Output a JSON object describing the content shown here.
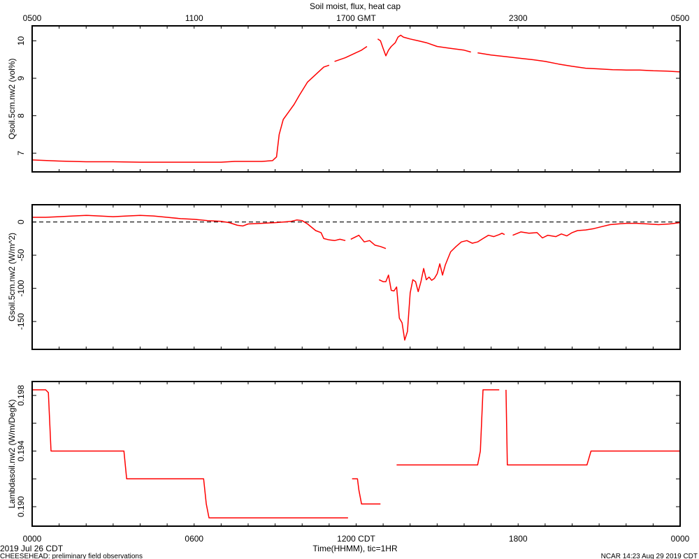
{
  "colors": {
    "series": "#ff0000",
    "frame": "#000000",
    "zero_line": "#000000"
  },
  "chart_data": {
    "type": "line",
    "title": "Soil moist, flux, heat cap",
    "x_range": [
      0,
      24
    ],
    "top_axis": {
      "labels": [
        "0500",
        "1100",
        "1700 GMT",
        "2300",
        "0500"
      ]
    },
    "bottom_axis": {
      "labels": [
        "0000",
        "0600",
        "1200 CDT",
        "1800",
        "0000"
      ],
      "xlabel": "Time(HHMM), tic=1HR"
    },
    "footer": {
      "date": "2019 Jul 26 CDT",
      "project": "CHEESEHEAD: preliminary field observations",
      "generated": "NCAR 14:23 Aug 29 2019 CDT"
    },
    "panels": [
      {
        "name": "moisture",
        "ylabel": "Qsoil.5cm.nw2 (vol%)",
        "ylim": [
          6.5,
          10.4
        ],
        "yticks": [
          7,
          8,
          9,
          10
        ],
        "ytick_labels": [
          "7",
          "8",
          "9",
          "10"
        ],
        "zero_line": false,
        "segments": [
          [
            [
              0,
              6.82
            ],
            [
              1,
              6.79
            ],
            [
              2,
              6.77
            ],
            [
              3,
              6.77
            ],
            [
              4,
              6.76
            ],
            [
              5,
              6.76
            ],
            [
              6,
              6.76
            ],
            [
              7,
              6.76
            ],
            [
              7.5,
              6.78
            ],
            [
              8,
              6.78
            ],
            [
              8.5,
              6.78
            ],
            [
              8.9,
              6.8
            ],
            [
              9.05,
              6.9
            ],
            [
              9.15,
              7.5
            ],
            [
              9.3,
              7.9
            ],
            [
              9.5,
              8.1
            ],
            [
              9.7,
              8.3
            ],
            [
              9.9,
              8.55
            ],
            [
              10.2,
              8.9
            ],
            [
              10.5,
              9.1
            ],
            [
              10.8,
              9.3
            ],
            [
              11.0,
              9.35
            ]
          ],
          [
            [
              11.2,
              9.45
            ],
            [
              11.6,
              9.55
            ],
            [
              11.9,
              9.65
            ],
            [
              12.2,
              9.75
            ],
            [
              12.4,
              9.85
            ]
          ],
          [
            [
              12.8,
              10.05
            ],
            [
              12.9,
              10.0
            ],
            [
              13.0,
              9.8
            ],
            [
              13.1,
              9.6
            ],
            [
              13.2,
              9.75
            ],
            [
              13.3,
              9.85
            ],
            [
              13.45,
              9.95
            ],
            [
              13.55,
              10.1
            ],
            [
              13.65,
              10.15
            ],
            [
              13.75,
              10.1
            ],
            [
              14.0,
              10.05
            ],
            [
              14.3,
              10.0
            ],
            [
              14.6,
              9.95
            ],
            [
              15.0,
              9.85
            ],
            [
              15.5,
              9.8
            ],
            [
              16.0,
              9.75
            ],
            [
              16.25,
              9.7
            ]
          ],
          [
            [
              16.5,
              9.68
            ],
            [
              17.0,
              9.62
            ],
            [
              17.5,
              9.58
            ],
            [
              18.0,
              9.54
            ],
            [
              18.5,
              9.5
            ],
            [
              19.0,
              9.45
            ],
            [
              19.5,
              9.38
            ],
            [
              20.0,
              9.32
            ],
            [
              20.5,
              9.27
            ],
            [
              21.0,
              9.25
            ],
            [
              21.5,
              9.23
            ],
            [
              22.0,
              9.22
            ],
            [
              22.5,
              9.22
            ],
            [
              23.0,
              9.2
            ],
            [
              23.5,
              9.19
            ],
            [
              24.0,
              9.17
            ]
          ]
        ]
      },
      {
        "name": "flux",
        "ylabel": "Gsoil.5cm.nw2 (W/m^2)",
        "ylim": [
          -192,
          26
        ],
        "yticks": [
          0,
          -50,
          -100,
          -150
        ],
        "ytick_labels": [
          "0",
          "-50",
          "-100",
          "-150"
        ],
        "zero_line": true,
        "segments": [
          [
            [
              0,
              7
            ],
            [
              0.5,
              7
            ],
            [
              1,
              8
            ],
            [
              1.5,
              9
            ],
            [
              2,
              10
            ],
            [
              2.5,
              9
            ],
            [
              3,
              8
            ],
            [
              3.5,
              9
            ],
            [
              4,
              10
            ],
            [
              4.5,
              9
            ],
            [
              5,
              7
            ],
            [
              5.5,
              5
            ],
            [
              6,
              4
            ],
            [
              6.5,
              2
            ],
            [
              7,
              1
            ],
            [
              7.3,
              -1
            ],
            [
              7.6,
              -5
            ],
            [
              7.8,
              -6
            ],
            [
              8,
              -3
            ],
            [
              8.5,
              -2
            ],
            [
              9,
              -1
            ],
            [
              9.3,
              0
            ],
            [
              9.6,
              1
            ],
            [
              9.8,
              3
            ],
            [
              10,
              2
            ],
            [
              10.2,
              -3
            ],
            [
              10.5,
              -13
            ],
            [
              10.7,
              -16
            ],
            [
              10.8,
              -25
            ],
            [
              11,
              -27
            ],
            [
              11.2,
              -28
            ],
            [
              11.4,
              -26
            ],
            [
              11.6,
              -28
            ]
          ],
          [
            [
              11.8,
              -26
            ],
            [
              12.1,
              -20
            ],
            [
              12.3,
              -30
            ],
            [
              12.5,
              -28
            ],
            [
              12.7,
              -35
            ],
            [
              12.9,
              -37
            ],
            [
              13.1,
              -40
            ]
          ],
          [
            [
              12.85,
              -87
            ],
            [
              13.0,
              -90
            ],
            [
              13.1,
              -90
            ],
            [
              13.2,
              -80
            ],
            [
              13.3,
              -103
            ],
            [
              13.4,
              -104
            ],
            [
              13.5,
              -98
            ],
            [
              13.6,
              -145
            ],
            [
              13.7,
              -152
            ],
            [
              13.8,
              -178
            ],
            [
              13.9,
              -165
            ],
            [
              14.0,
              -107
            ],
            [
              14.1,
              -87
            ],
            [
              14.2,
              -90
            ],
            [
              14.3,
              -105
            ],
            [
              14.4,
              -90
            ],
            [
              14.5,
              -70
            ],
            [
              14.6,
              -87
            ],
            [
              14.7,
              -83
            ],
            [
              14.8,
              -88
            ],
            [
              14.9,
              -85
            ],
            [
              15.0,
              -78
            ],
            [
              15.1,
              -63
            ],
            [
              15.2,
              -80
            ],
            [
              15.3,
              -65
            ],
            [
              15.4,
              -55
            ],
            [
              15.5,
              -45
            ],
            [
              15.7,
              -37
            ],
            [
              15.9,
              -30
            ],
            [
              16.1,
              -28
            ],
            [
              16.3,
              -32
            ],
            [
              16.5,
              -30
            ],
            [
              16.7,
              -25
            ],
            [
              16.9,
              -20
            ],
            [
              17.1,
              -22
            ],
            [
              17.3,
              -19
            ],
            [
              17.4,
              -17
            ],
            [
              17.5,
              -19
            ]
          ],
          [
            [
              17.8,
              -20
            ],
            [
              18.1,
              -15
            ],
            [
              18.4,
              -17
            ],
            [
              18.7,
              -16
            ],
            [
              18.9,
              -24
            ],
            [
              19.1,
              -20
            ],
            [
              19.4,
              -22
            ],
            [
              19.6,
              -18
            ],
            [
              19.8,
              -21
            ],
            [
              20.0,
              -16
            ],
            [
              20.2,
              -13
            ],
            [
              20.5,
              -12
            ],
            [
              20.8,
              -10
            ],
            [
              21.1,
              -7
            ],
            [
              21.4,
              -4
            ],
            [
              21.7,
              -3
            ],
            [
              22.0,
              -2
            ],
            [
              22.4,
              -2
            ],
            [
              22.8,
              -3
            ],
            [
              23.2,
              -4
            ],
            [
              23.6,
              -3
            ],
            [
              24.0,
              -1
            ]
          ]
        ]
      },
      {
        "name": "conductivity",
        "ylabel": "Lambdasoil.nw2 (W/m/DegK)",
        "ylim": [
          0.1886,
          0.199
        ],
        "yticks": [
          0.19,
          0.192,
          0.194,
          0.196,
          0.198
        ],
        "ytick_labels": [
          "0.190",
          "",
          "0.194",
          "",
          "0.198"
        ],
        "zero_line": false,
        "segments": [
          [
            [
              0,
              0.1984
            ],
            [
              0.5,
              0.1984
            ],
            [
              0.6,
              0.1982
            ],
            [
              0.7,
              0.194
            ],
            [
              3.4,
              0.194
            ],
            [
              3.5,
              0.192
            ],
            [
              6.35,
              0.192
            ],
            [
              6.45,
              0.1902
            ],
            [
              6.55,
              0.1892
            ],
            [
              11.7,
              0.1892
            ]
          ],
          [
            [
              11.85,
              0.192
            ],
            [
              12.05,
              0.192
            ],
            [
              12.1,
              0.1912
            ],
            [
              12.2,
              0.1902
            ],
            [
              12.9,
              0.1902
            ]
          ],
          [
            [
              13.5,
              0.193
            ],
            [
              16.5,
              0.193
            ],
            [
              16.6,
              0.194
            ],
            [
              16.7,
              0.1984
            ],
            [
              17.3,
              0.1984
            ]
          ],
          [
            [
              17.55,
              0.1984
            ],
            [
              17.6,
              0.193
            ],
            [
              20.55,
              0.193
            ],
            [
              20.7,
              0.194
            ],
            [
              24.0,
              0.194
            ]
          ]
        ]
      }
    ]
  }
}
